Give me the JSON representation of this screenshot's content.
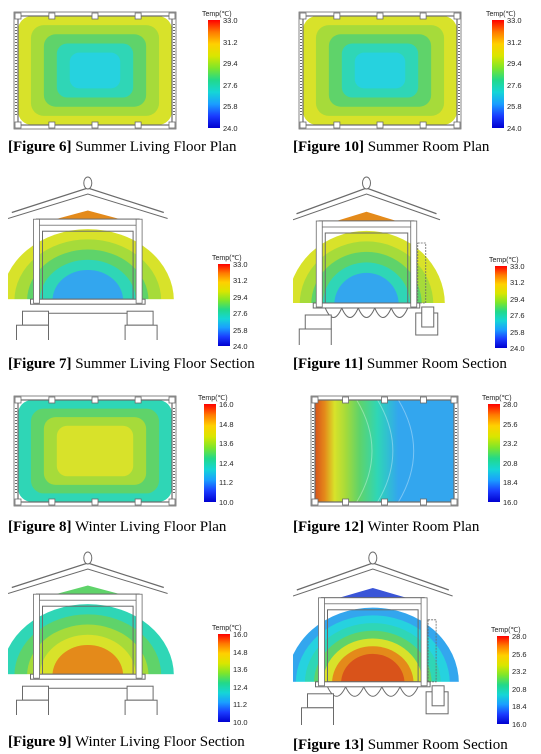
{
  "figures": [
    {
      "id": "f6",
      "tag": "[Figure 6]",
      "title": "Summer Living Floor Plan",
      "kind": "plan",
      "map": "summer-plan",
      "scale": "summer"
    },
    {
      "id": "f10",
      "tag": "[Figure 10]",
      "title": "Summer Room Plan",
      "kind": "plan",
      "map": "summer-plan",
      "scale": "summer"
    },
    {
      "id": "f7",
      "tag": "[Figure 7]",
      "title": "Summer Living Floor Section",
      "kind": "section",
      "map": "summer-section",
      "scale": "summer"
    },
    {
      "id": "f11",
      "tag": "[Figure 11]",
      "title": "Summer Room Section",
      "kind": "section-ondol",
      "map": "summer-section",
      "scale": "summer"
    },
    {
      "id": "f8",
      "tag": "[Figure 8]",
      "title": "Winter Living Floor Plan",
      "kind": "plan",
      "map": "winter-plan",
      "scale": "winterliving"
    },
    {
      "id": "f12",
      "tag": "[Figure 12]",
      "title": "Winter Room Plan",
      "kind": "plan",
      "map": "winter-room-plan",
      "scale": "winterroom"
    },
    {
      "id": "f9",
      "tag": "[Figure 9]",
      "title": "Winter Living Floor Section",
      "kind": "section",
      "map": "winter-section",
      "scale": "winterliving"
    },
    {
      "id": "f13",
      "tag": "[Figure 13]",
      "title": "Summer Room Section",
      "kind": "section-ondol",
      "map": "winter-room-section",
      "scale": "winterroom"
    }
  ],
  "scales": {
    "summer": {
      "title": "Temp(℃)",
      "ticks": [
        "33.0",
        "31.2",
        "29.4",
        "27.6",
        "25.8",
        "24.0"
      ]
    },
    "winterliving": {
      "title": "Temp(℃)",
      "ticks": [
        "16.0",
        "14.8",
        "13.6",
        "12.4",
        "11.2",
        "10.0"
      ]
    },
    "winterroom": {
      "title": "Temp(℃)",
      "ticks": [
        "28.0",
        "25.6",
        "23.2",
        "20.8",
        "18.4",
        "16.0"
      ]
    }
  },
  "colors": {
    "gradient": [
      "#ff0000",
      "#ff7a00",
      "#ffd000",
      "#d9e600",
      "#7ee62a",
      "#22d98a",
      "#15d6d6",
      "#1a9eff",
      "#1a3cff",
      "#0000d0"
    ],
    "yellow": "#d8e22a",
    "lime": "#a6db3a",
    "green": "#5fd36a",
    "teal": "#2fd6b6",
    "cyan": "#26d2df",
    "sky": "#33a6ee",
    "orange": "#e48a1a",
    "red": "#d9531a",
    "blue": "#2e7ad8",
    "deepblue": "#3a55d8",
    "outline": "#6a6a6a"
  }
}
